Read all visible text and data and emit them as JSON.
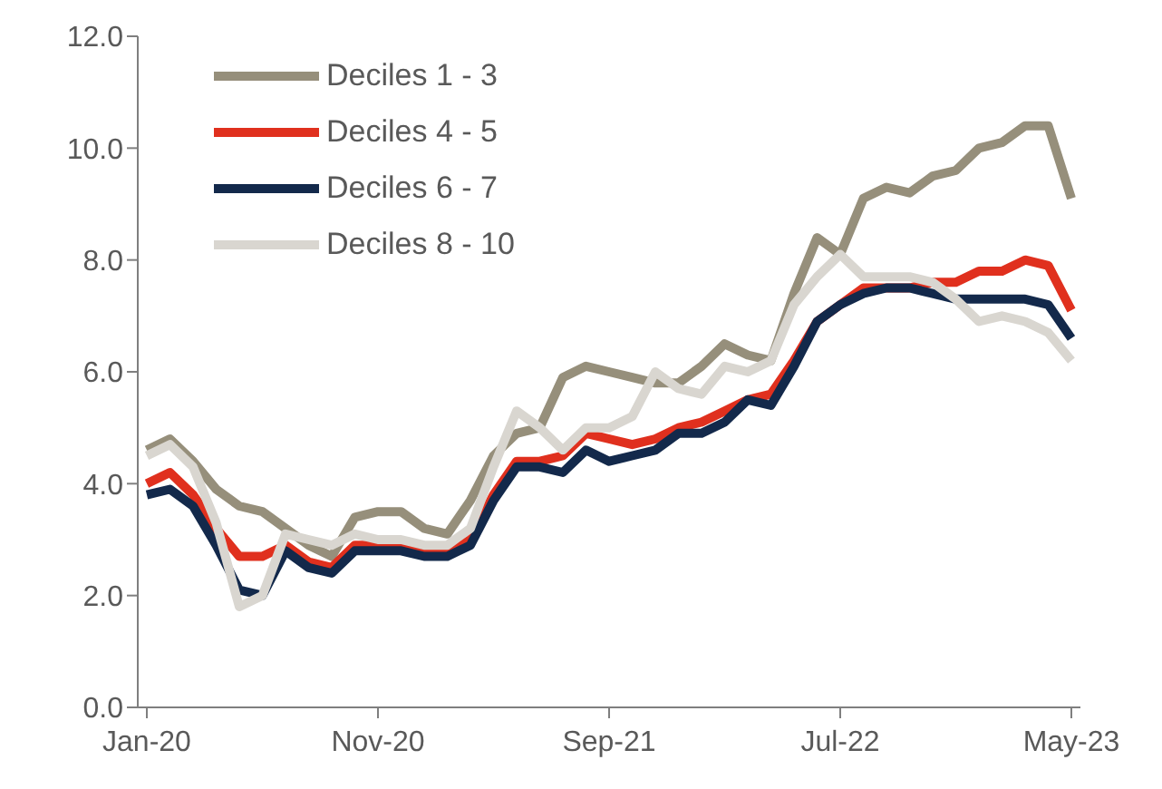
{
  "chart_data": {
    "type": "line",
    "categories": [
      "Jan-20",
      null,
      null,
      null,
      null,
      null,
      null,
      null,
      null,
      null,
      "Nov-20",
      null,
      null,
      null,
      null,
      null,
      null,
      null,
      null,
      null,
      "Sep-21",
      null,
      null,
      null,
      null,
      null,
      null,
      null,
      null,
      null,
      "Jul-22",
      null,
      null,
      null,
      null,
      null,
      null,
      null,
      null,
      null,
      "May-23"
    ],
    "series": [
      {
        "name": "Deciles 1 - 3",
        "color": "#968f7b",
        "values": [
          4.6,
          4.8,
          4.4,
          3.9,
          3.6,
          3.5,
          3.2,
          2.9,
          2.7,
          3.4,
          3.5,
          3.5,
          3.2,
          3.1,
          3.7,
          4.5,
          4.9,
          5.0,
          5.9,
          6.1,
          6.0,
          5.9,
          5.8,
          5.8,
          6.1,
          6.5,
          6.3,
          6.2,
          7.4,
          8.4,
          8.1,
          9.1,
          9.3,
          9.2,
          9.5,
          9.6,
          10.0,
          10.1,
          10.4,
          10.4,
          9.1
        ]
      },
      {
        "name": "Deciles 4 - 5",
        "color": "#e0301e",
        "values": [
          4.0,
          4.2,
          3.8,
          3.2,
          2.7,
          2.7,
          2.9,
          2.6,
          2.5,
          2.9,
          2.9,
          2.9,
          2.8,
          2.8,
          3.0,
          3.8,
          4.4,
          4.4,
          4.5,
          4.9,
          4.8,
          4.7,
          4.8,
          5.0,
          5.1,
          5.3,
          5.5,
          5.6,
          6.2,
          6.9,
          7.2,
          7.5,
          7.5,
          7.5,
          7.6,
          7.6,
          7.8,
          7.8,
          8.0,
          7.9,
          7.1
        ]
      },
      {
        "name": "Deciles 6 - 7",
        "color": "#13294b",
        "values": [
          3.8,
          3.9,
          3.6,
          2.9,
          2.1,
          2.0,
          2.8,
          2.5,
          2.4,
          2.8,
          2.8,
          2.8,
          2.7,
          2.7,
          2.9,
          3.7,
          4.3,
          4.3,
          4.2,
          4.6,
          4.4,
          4.5,
          4.6,
          4.9,
          4.9,
          5.1,
          5.5,
          5.4,
          6.1,
          6.9,
          7.2,
          7.4,
          7.5,
          7.5,
          7.4,
          7.3,
          7.3,
          7.3,
          7.3,
          7.2,
          6.6
        ]
      },
      {
        "name": "Deciles 8 - 10",
        "color": "#d9d6d0",
        "values": [
          4.5,
          4.7,
          4.3,
          3.3,
          1.8,
          2.0,
          3.1,
          3.0,
          2.9,
          3.1,
          3.0,
          3.0,
          2.9,
          2.9,
          3.2,
          4.3,
          5.3,
          5.0,
          4.6,
          5.0,
          5.0,
          5.2,
          6.0,
          5.7,
          5.6,
          6.1,
          6.0,
          6.2,
          7.2,
          7.7,
          8.1,
          7.7,
          7.7,
          7.7,
          7.6,
          7.3,
          6.9,
          7.0,
          6.9,
          6.7,
          6.2
        ]
      }
    ],
    "ylim": [
      0,
      12
    ],
    "yticks": [
      {
        "value": 0,
        "label": "0.0"
      },
      {
        "value": 2,
        "label": "2.0"
      },
      {
        "value": 4,
        "label": "4.0"
      },
      {
        "value": 6,
        "label": "6.0"
      },
      {
        "value": 8,
        "label": "8.0"
      },
      {
        "value": 10,
        "label": "10.0"
      },
      {
        "value": 12,
        "label": "12.0"
      }
    ],
    "legend": "top left",
    "marker": "none",
    "line_style": "solid"
  }
}
